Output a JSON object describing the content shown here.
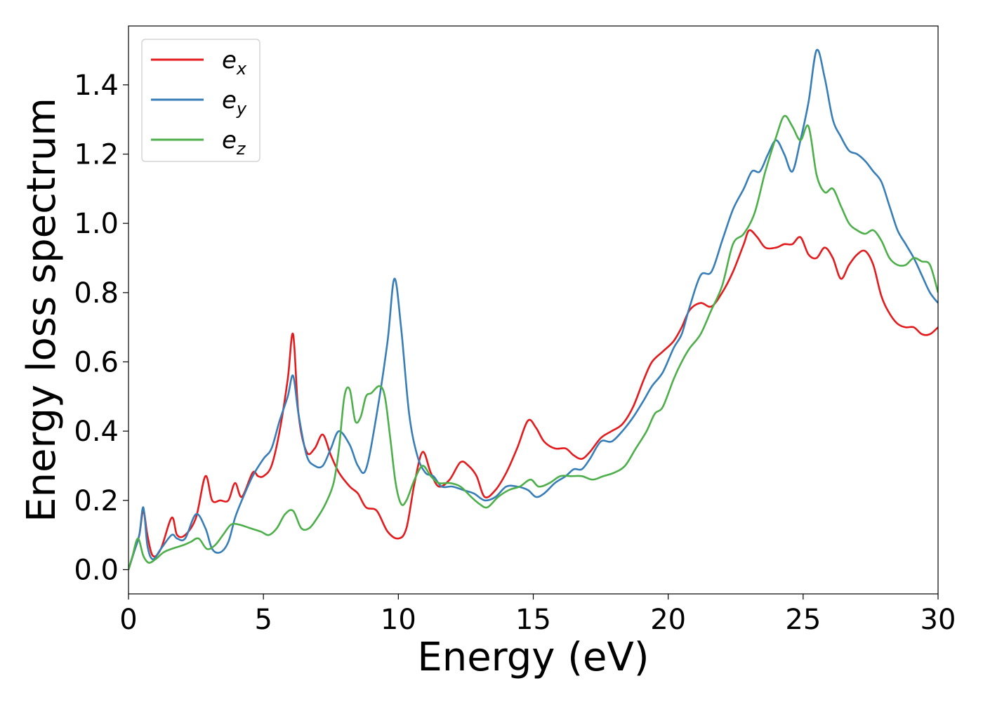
{
  "chart_data": {
    "type": "line",
    "title": "",
    "xlabel": "Energy (eV)",
    "ylabel": "Energy loss spectrum",
    "xlim": [
      0,
      30
    ],
    "ylim": [
      -0.07,
      1.57
    ],
    "xticks": [
      0,
      5,
      10,
      15,
      20,
      25,
      30
    ],
    "yticks": [
      0.0,
      0.2,
      0.4,
      0.6,
      0.8,
      1.0,
      1.2,
      1.4
    ],
    "xtick_labels": [
      "0",
      "5",
      "10",
      "15",
      "20",
      "25",
      "30"
    ],
    "ytick_labels": [
      "0.0",
      "0.2",
      "0.4",
      "0.6",
      "0.8",
      "1.0",
      "1.2",
      "1.4"
    ],
    "grid": false,
    "legend_position": "top-left",
    "series": [
      {
        "name": "e_x",
        "label_base": "e",
        "label_sub": "x",
        "color": "#e41a1c",
        "x": [
          0,
          0.2,
          0.4,
          0.55,
          0.7,
          0.9,
          1.2,
          1.6,
          1.8,
          2.1,
          2.5,
          2.85,
          3.1,
          3.4,
          3.7,
          3.95,
          4.2,
          4.6,
          4.8,
          5.0,
          5.3,
          5.6,
          5.9,
          6.1,
          6.3,
          6.6,
          6.9,
          7.2,
          7.5,
          7.8,
          8.2,
          8.5,
          8.8,
          9.2,
          9.6,
          10.0,
          10.3,
          10.6,
          10.9,
          11.2,
          11.5,
          11.9,
          12.3,
          12.6,
          12.9,
          13.2,
          13.6,
          14.0,
          14.4,
          14.8,
          15.1,
          15.4,
          15.8,
          16.2,
          16.5,
          16.8,
          17.1,
          17.5,
          17.9,
          18.3,
          18.7,
          19.1,
          19.4,
          19.8,
          20.2,
          20.5,
          20.8,
          21.2,
          21.6,
          22.0,
          22.4,
          22.8,
          23.0,
          23.3,
          23.6,
          24.0,
          24.3,
          24.6,
          24.9,
          25.2,
          25.5,
          25.8,
          26.1,
          26.4,
          26.7,
          27.0,
          27.3,
          27.6,
          27.9,
          28.2,
          28.5,
          28.8,
          29.1,
          29.4,
          29.7,
          30.0
        ],
        "y": [
          0.0,
          0.05,
          0.1,
          0.17,
          0.1,
          0.04,
          0.06,
          0.15,
          0.1,
          0.1,
          0.15,
          0.27,
          0.2,
          0.2,
          0.2,
          0.25,
          0.21,
          0.28,
          0.27,
          0.27,
          0.3,
          0.4,
          0.55,
          0.68,
          0.45,
          0.34,
          0.35,
          0.39,
          0.33,
          0.28,
          0.24,
          0.22,
          0.18,
          0.17,
          0.11,
          0.09,
          0.12,
          0.25,
          0.34,
          0.28,
          0.24,
          0.26,
          0.31,
          0.3,
          0.27,
          0.21,
          0.23,
          0.28,
          0.35,
          0.43,
          0.41,
          0.37,
          0.35,
          0.35,
          0.33,
          0.32,
          0.34,
          0.38,
          0.4,
          0.42,
          0.47,
          0.55,
          0.6,
          0.63,
          0.66,
          0.7,
          0.75,
          0.77,
          0.76,
          0.8,
          0.86,
          0.94,
          0.98,
          0.96,
          0.93,
          0.93,
          0.94,
          0.94,
          0.96,
          0.91,
          0.9,
          0.93,
          0.9,
          0.84,
          0.88,
          0.91,
          0.92,
          0.88,
          0.79,
          0.74,
          0.71,
          0.7,
          0.7,
          0.68,
          0.68,
          0.7
        ]
      },
      {
        "name": "e_y",
        "label_base": "e",
        "label_sub": "y",
        "color": "#377eb8",
        "x": [
          0,
          0.2,
          0.4,
          0.55,
          0.7,
          0.9,
          1.2,
          1.6,
          1.8,
          2.1,
          2.5,
          2.85,
          3.1,
          3.4,
          3.7,
          3.95,
          4.2,
          4.6,
          5.0,
          5.3,
          5.6,
          5.9,
          6.1,
          6.3,
          6.6,
          6.9,
          7.2,
          7.5,
          7.8,
          8.2,
          8.5,
          8.8,
          9.2,
          9.6,
          9.85,
          10.1,
          10.4,
          10.7,
          11.0,
          11.3,
          11.6,
          12.0,
          12.4,
          12.8,
          13.2,
          13.6,
          14.0,
          14.4,
          14.8,
          15.1,
          15.4,
          15.8,
          16.2,
          16.5,
          16.8,
          17.1,
          17.5,
          17.9,
          18.3,
          18.7,
          19.1,
          19.4,
          19.8,
          20.2,
          20.5,
          20.8,
          21.2,
          21.6,
          22.0,
          22.4,
          22.8,
          23.1,
          23.4,
          23.7,
          24.0,
          24.3,
          24.6,
          24.9,
          25.2,
          25.5,
          25.8,
          26.1,
          26.4,
          26.7,
          27.0,
          27.3,
          27.6,
          27.9,
          28.2,
          28.5,
          28.8,
          29.1,
          29.4,
          29.7,
          30.0
        ],
        "y": [
          0.0,
          0.05,
          0.1,
          0.18,
          0.07,
          0.03,
          0.06,
          0.1,
          0.09,
          0.09,
          0.16,
          0.12,
          0.06,
          0.05,
          0.08,
          0.15,
          0.2,
          0.27,
          0.32,
          0.35,
          0.43,
          0.5,
          0.56,
          0.45,
          0.33,
          0.3,
          0.3,
          0.35,
          0.4,
          0.36,
          0.3,
          0.29,
          0.45,
          0.66,
          0.84,
          0.7,
          0.45,
          0.33,
          0.28,
          0.27,
          0.24,
          0.24,
          0.23,
          0.22,
          0.2,
          0.21,
          0.24,
          0.24,
          0.23,
          0.21,
          0.22,
          0.25,
          0.27,
          0.29,
          0.29,
          0.32,
          0.37,
          0.37,
          0.4,
          0.44,
          0.49,
          0.53,
          0.57,
          0.64,
          0.68,
          0.76,
          0.85,
          0.86,
          0.95,
          1.04,
          1.1,
          1.15,
          1.15,
          1.2,
          1.24,
          1.2,
          1.15,
          1.24,
          1.35,
          1.5,
          1.42,
          1.3,
          1.25,
          1.21,
          1.2,
          1.18,
          1.15,
          1.12,
          1.05,
          0.98,
          0.94,
          0.9,
          0.85,
          0.8,
          0.77
        ]
      },
      {
        "name": "e_z",
        "label_base": "e",
        "label_sub": "z",
        "color": "#4daf4a",
        "x": [
          0,
          0.15,
          0.35,
          0.55,
          0.75,
          1.0,
          1.3,
          1.6,
          2.0,
          2.3,
          2.6,
          2.9,
          3.2,
          3.5,
          3.8,
          4.1,
          4.5,
          4.9,
          5.2,
          5.5,
          5.8,
          6.1,
          6.4,
          6.7,
          7.0,
          7.3,
          7.6,
          7.8,
          8.0,
          8.2,
          8.4,
          8.6,
          8.8,
          9.0,
          9.3,
          9.5,
          9.7,
          9.9,
          10.1,
          10.3,
          10.6,
          10.9,
          11.2,
          11.5,
          11.9,
          12.3,
          12.7,
          13.0,
          13.3,
          13.7,
          14.1,
          14.5,
          14.9,
          15.2,
          15.6,
          16.0,
          16.4,
          16.8,
          17.2,
          17.6,
          18.0,
          18.4,
          18.8,
          19.2,
          19.5,
          19.8,
          20.2,
          20.5,
          20.8,
          21.2,
          21.6,
          22.0,
          22.4,
          22.8,
          23.2,
          23.6,
          24.0,
          24.3,
          24.6,
          24.9,
          25.2,
          25.5,
          25.8,
          26.1,
          26.4,
          26.7,
          27.0,
          27.3,
          27.6,
          27.9,
          28.2,
          28.5,
          28.8,
          29.1,
          29.4,
          29.7,
          30.0
        ],
        "y": [
          0.0,
          0.04,
          0.09,
          0.04,
          0.02,
          0.03,
          0.05,
          0.06,
          0.07,
          0.08,
          0.09,
          0.06,
          0.07,
          0.1,
          0.13,
          0.13,
          0.12,
          0.11,
          0.1,
          0.12,
          0.16,
          0.17,
          0.12,
          0.12,
          0.15,
          0.19,
          0.25,
          0.35,
          0.5,
          0.52,
          0.43,
          0.44,
          0.5,
          0.51,
          0.53,
          0.5,
          0.38,
          0.25,
          0.19,
          0.2,
          0.26,
          0.3,
          0.27,
          0.25,
          0.25,
          0.24,
          0.21,
          0.19,
          0.18,
          0.21,
          0.23,
          0.24,
          0.26,
          0.24,
          0.25,
          0.27,
          0.27,
          0.27,
          0.26,
          0.27,
          0.28,
          0.3,
          0.35,
          0.4,
          0.45,
          0.47,
          0.55,
          0.6,
          0.64,
          0.68,
          0.75,
          0.82,
          0.94,
          0.97,
          1.03,
          1.15,
          1.25,
          1.31,
          1.28,
          1.24,
          1.28,
          1.14,
          1.09,
          1.1,
          1.05,
          1.0,
          0.98,
          0.97,
          0.98,
          0.95,
          0.9,
          0.88,
          0.88,
          0.9,
          0.89,
          0.88,
          0.8
        ]
      }
    ]
  }
}
